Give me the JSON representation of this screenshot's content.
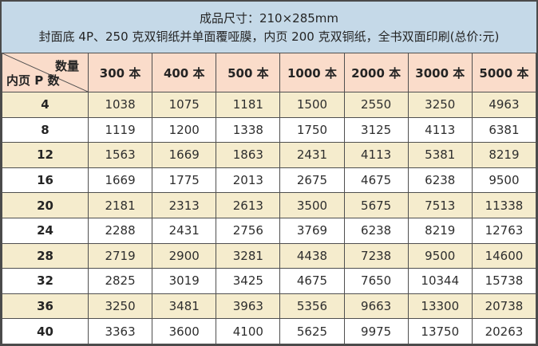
{
  "header": {
    "line1_ref": "see chart_data.title",
    "line2_ref": "see chart_data.subtitle"
  },
  "chart_data": {
    "type": "table",
    "title": "成品尺寸：210×285mm",
    "subtitle": "封面底 4P、250 克双铜纸并单面覆哑膜，内页 200 克双铜纸，全书双面印刷(总价:元)",
    "corner": {
      "top_right": "数量",
      "bottom_left": "内页 P 数"
    },
    "columns": [
      "300 本",
      "400 本",
      "500 本",
      "1000 本",
      "2000 本",
      "3000 本",
      "5000 本"
    ],
    "rows": [
      {
        "pages": "4",
        "prices": [
          1038,
          1075,
          1181,
          1500,
          2550,
          3250,
          4963
        ]
      },
      {
        "pages": "8",
        "prices": [
          1119,
          1200,
          1338,
          1750,
          3125,
          4113,
          6381
        ]
      },
      {
        "pages": "12",
        "prices": [
          1563,
          1669,
          1863,
          2431,
          4113,
          5381,
          8219
        ]
      },
      {
        "pages": "16",
        "prices": [
          1669,
          1775,
          2013,
          2675,
          4675,
          6238,
          9500
        ]
      },
      {
        "pages": "20",
        "prices": [
          2181,
          2313,
          2613,
          3500,
          5675,
          7513,
          11338
        ]
      },
      {
        "pages": "24",
        "prices": [
          2288,
          2431,
          2756,
          3769,
          6238,
          8219,
          12763
        ]
      },
      {
        "pages": "28",
        "prices": [
          2719,
          2900,
          3281,
          4438,
          7238,
          9500,
          14600
        ]
      },
      {
        "pages": "32",
        "prices": [
          2825,
          3019,
          3425,
          4675,
          7650,
          10344,
          15738
        ]
      },
      {
        "pages": "36",
        "prices": [
          3250,
          3481,
          3963,
          5356,
          9663,
          13300,
          20738
        ]
      },
      {
        "pages": "40",
        "prices": [
          3363,
          3600,
          4100,
          5625,
          9975,
          13750,
          20263
        ]
      }
    ]
  },
  "colors": {
    "panel_background": "#c5d9e8",
    "header_row_background": "#fadcca",
    "row_stripe": "#f5eccd",
    "row_alt": "#ffffff",
    "grid_line": "#4f4f4f",
    "text": "#2e2e2e"
  }
}
